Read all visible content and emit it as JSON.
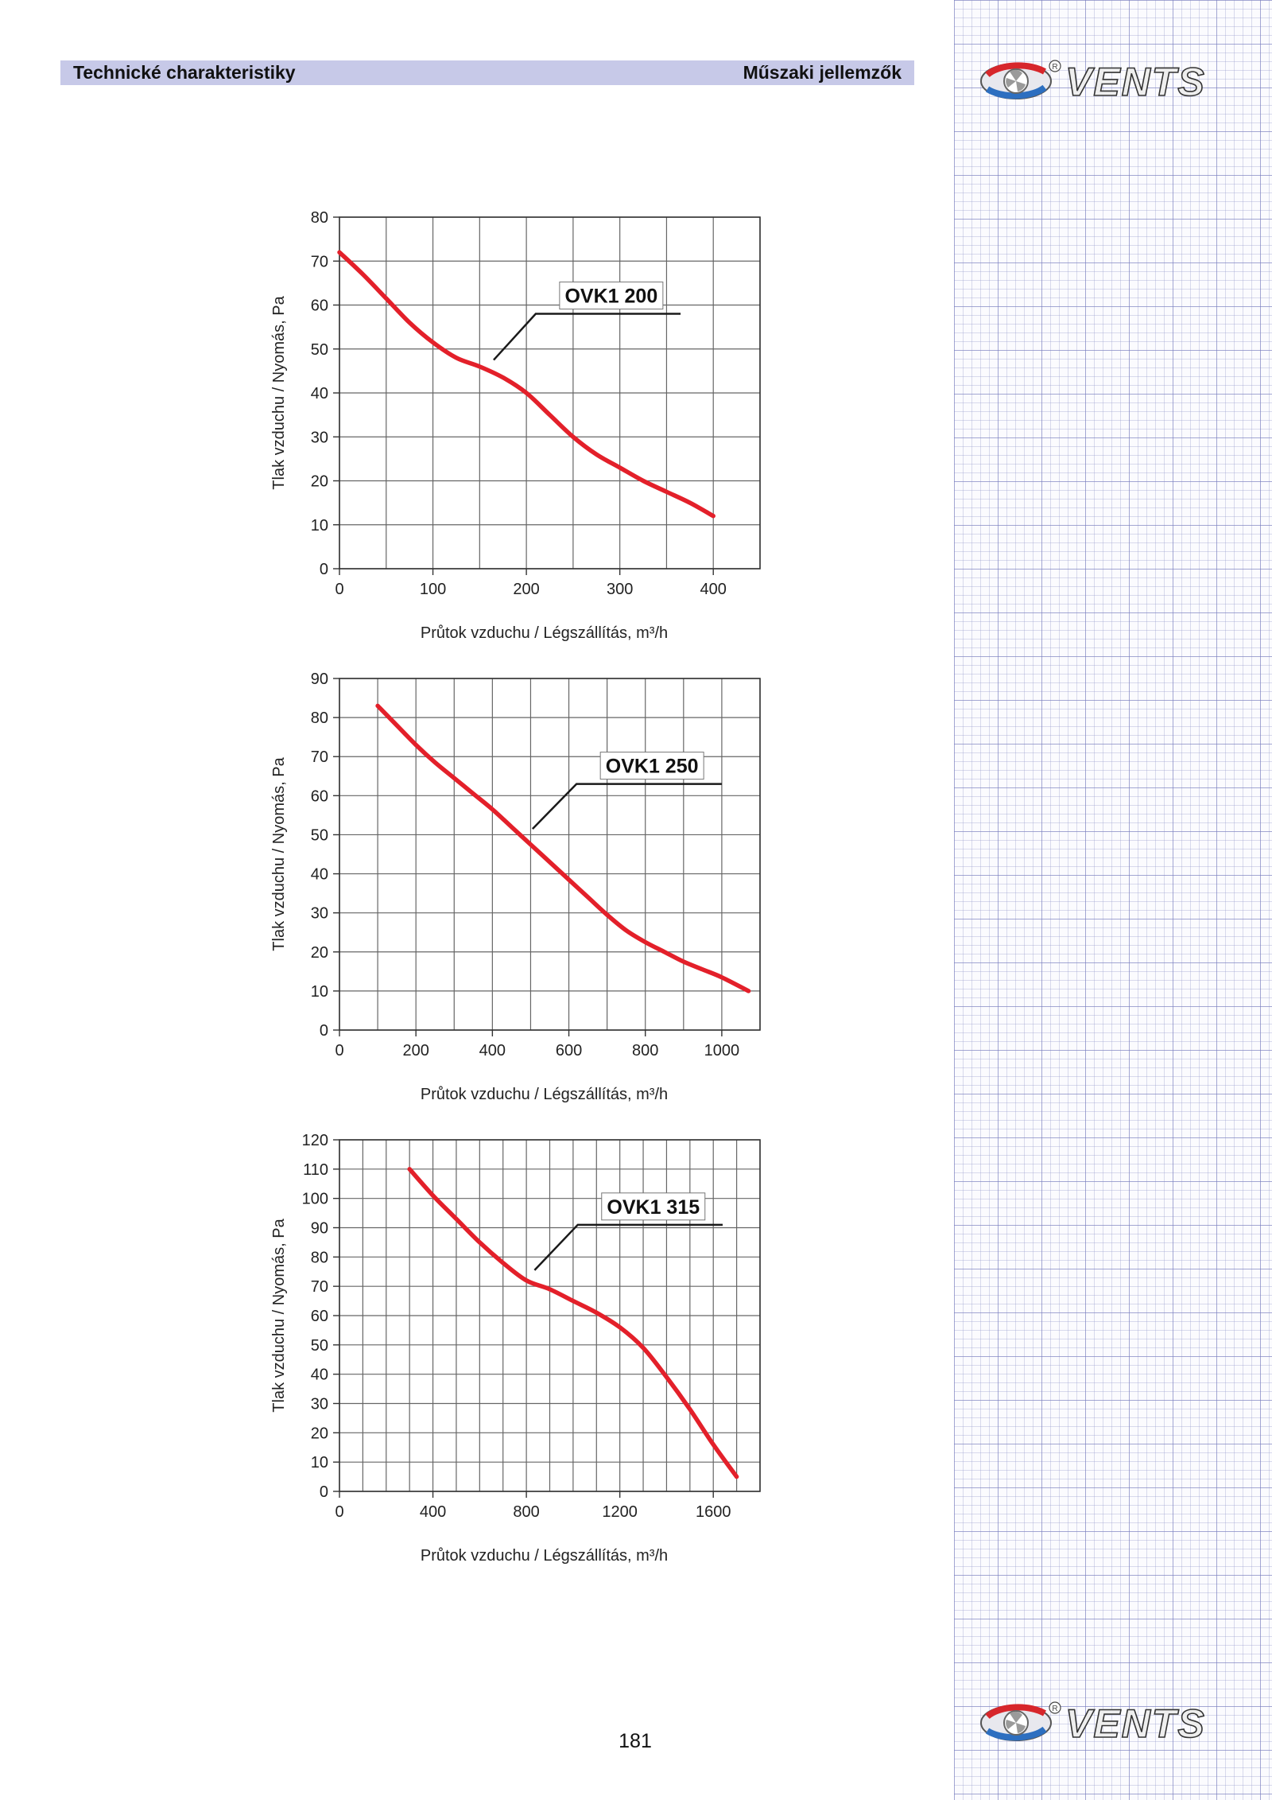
{
  "header": {
    "left_title": "Technické charakteristiky",
    "right_title": "Műszaki jellemzők"
  },
  "brand": {
    "logo_text": "VENTS",
    "registered_mark": "R"
  },
  "page_number": "181",
  "colors": {
    "curve": "#e3202a",
    "grid": "#666666",
    "header_band": "#c7c9e8",
    "sidebar_grid": "#8d92cc"
  },
  "chart_data": [
    {
      "type": "line",
      "xlabel": "Průtok vzduchu / Légszállítás, m³/h",
      "ylabel": "Tlak vzduchu / Nyomás, Pa",
      "xlim": [
        0,
        450
      ],
      "ylim": [
        0,
        80
      ],
      "x_grid_step": 50,
      "y_grid_step": 10,
      "x_ticks": [
        0,
        100,
        200,
        300,
        400
      ],
      "y_ticks": [
        0,
        10,
        20,
        30,
        40,
        50,
        60,
        70,
        80
      ],
      "grid": true,
      "series": [
        {
          "name": "OVK1 200",
          "x": [
            0,
            25,
            50,
            75,
            100,
            125,
            150,
            175,
            200,
            225,
            250,
            275,
            300,
            325,
            350,
            375,
            400
          ],
          "y": [
            72,
            67,
            61.5,
            56,
            51.5,
            48,
            46,
            43.5,
            40,
            35,
            30,
            26,
            23,
            20,
            17.5,
            15,
            12
          ]
        }
      ],
      "label_pointer": {
        "from": [
          165,
          47.5
        ],
        "to": [
          210,
          58
        ],
        "end": [
          365,
          58
        ]
      }
    },
    {
      "type": "line",
      "xlabel": "Průtok vzduchu / Légszállítás, m³/h",
      "ylabel": "Tlak vzduchu / Nyomás, Pa",
      "xlim": [
        0,
        1100
      ],
      "ylim": [
        0,
        90
      ],
      "x_grid_step": 100,
      "y_grid_step": 10,
      "x_ticks": [
        0,
        200,
        400,
        600,
        800,
        1000
      ],
      "y_ticks": [
        0,
        10,
        20,
        30,
        40,
        50,
        60,
        70,
        80,
        90
      ],
      "grid": true,
      "series": [
        {
          "name": "OVK1 250",
          "x": [
            100,
            150,
            200,
            250,
            300,
            350,
            400,
            450,
            500,
            550,
            600,
            650,
            700,
            750,
            800,
            850,
            900,
            950,
            1000,
            1070
          ],
          "y": [
            83,
            78,
            73,
            68.5,
            64.5,
            60.5,
            56.5,
            52,
            47.5,
            43,
            38.5,
            34,
            29.5,
            25.5,
            22.5,
            20,
            17.5,
            15.5,
            13.5,
            10
          ]
        }
      ],
      "label_pointer": {
        "from": [
          505,
          51.5
        ],
        "to": [
          620,
          63
        ],
        "end": [
          1000,
          63
        ]
      }
    },
    {
      "type": "line",
      "xlabel": "Průtok vzduchu / Légszállítás, m³/h",
      "ylabel": "Tlak vzduchu / Nyomás, Pa",
      "xlim": [
        0,
        1800
      ],
      "ylim": [
        0,
        120
      ],
      "x_grid_step": 100,
      "y_grid_step": 10,
      "x_ticks": [
        0,
        400,
        800,
        1200,
        1600
      ],
      "y_ticks": [
        0,
        10,
        20,
        30,
        40,
        50,
        60,
        70,
        80,
        90,
        100,
        110,
        120
      ],
      "grid": true,
      "series": [
        {
          "name": "OVK1 315",
          "x": [
            300,
            400,
            500,
            600,
            700,
            800,
            900,
            1000,
            1100,
            1200,
            1300,
            1400,
            1500,
            1600,
            1700
          ],
          "y": [
            110,
            101,
            93,
            85,
            78,
            72,
            69,
            65,
            61,
            56,
            49,
            39,
            28,
            16,
            5
          ]
        }
      ],
      "label_pointer": {
        "from": [
          835,
          75.5
        ],
        "to": [
          1020,
          91
        ],
        "end": [
          1640,
          91
        ]
      }
    }
  ]
}
